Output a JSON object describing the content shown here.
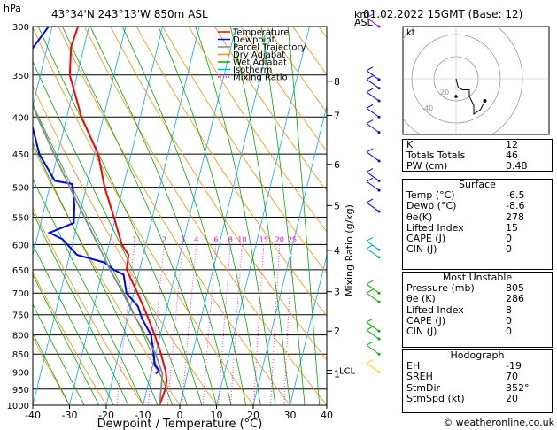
{
  "header": {
    "location": "43°34'N  243°13'W  850m  ASL",
    "datetime": "01.02.2022  15GMT  (Base: 12)"
  },
  "chart_data": {
    "type": "line",
    "title": "",
    "xlabel": "Dewpoint / Temperature (°C)",
    "ylabel": "hPa",
    "xlim": [
      -40,
      40
    ],
    "ylim": [
      1000,
      300
    ],
    "y_scale": "log",
    "xticks": [
      "-40",
      "-30",
      "-20",
      "-10",
      "0",
      "10",
      "20",
      "30",
      "40"
    ],
    "xtick_values": [
      -40,
      -30,
      -20,
      -10,
      0,
      10,
      20,
      30,
      40
    ],
    "yticks": [
      "300",
      "350",
      "400",
      "450",
      "500",
      "550",
      "600",
      "650",
      "700",
      "750",
      "800",
      "850",
      "900",
      "950",
      "1000"
    ],
    "ytick_values": [
      300,
      350,
      400,
      450,
      500,
      550,
      600,
      650,
      700,
      750,
      800,
      850,
      900,
      950,
      1000
    ],
    "km_axis": {
      "label_top": "km",
      "label_bottom": "ASL",
      "ticks": [
        {
          "label": "8",
          "p": 357
        },
        {
          "label": "7",
          "p": 398
        },
        {
          "label": "6",
          "p": 465
        },
        {
          "label": "5",
          "p": 530
        },
        {
          "label": "4",
          "p": 611
        },
        {
          "label": "3",
          "p": 697
        },
        {
          "label": "2",
          "p": 790
        },
        {
          "label": "1",
          "p": 905
        }
      ],
      "lcl_label": "LCL",
      "lcl_p": 895
    },
    "mixing_ratio_axis_label": "Mixing Ratio (g/kg)",
    "mixing_ratio_labels": [
      "1",
      "2",
      "3",
      "4",
      "6",
      "8",
      "10",
      "15",
      "20",
      "25"
    ],
    "mixing_ratio_values": [
      1,
      2,
      3,
      4,
      6,
      8,
      10,
      15,
      20,
      25
    ],
    "legend": {
      "position": "top-left",
      "entries": [
        {
          "name": "Temperature",
          "color": "#ff0000",
          "style": "solid"
        },
        {
          "name": "Dewpoint",
          "color": "#0000ff",
          "style": "solid"
        },
        {
          "name": "Parcel Trajectory",
          "color": "#888888",
          "style": "solid"
        },
        {
          "name": "Dry Adiabat",
          "color": "#ff8c00",
          "style": "solid"
        },
        {
          "name": "Wet Adiabat",
          "color": "#00aa00",
          "style": "solid"
        },
        {
          "name": "Isotherm",
          "color": "#00aaff",
          "style": "solid"
        },
        {
          "name": "Mixing Ratio",
          "color": "#ff00ff",
          "style": "dotted"
        }
      ]
    },
    "series": [
      {
        "name": "Temperature",
        "color": "#ff0000",
        "points": [
          [
            1000,
            -5.5
          ],
          [
            950,
            -5.0
          ],
          [
            925,
            -5.2
          ],
          [
            900,
            -6.0
          ],
          [
            870,
            -7.5
          ],
          [
            850,
            -8.5
          ],
          [
            800,
            -11.5
          ],
          [
            750,
            -15.0
          ],
          [
            700,
            -19.0
          ],
          [
            650,
            -23.5
          ],
          [
            620,
            -24.0
          ],
          [
            600,
            -26.5
          ],
          [
            550,
            -30.5
          ],
          [
            500,
            -35.0
          ],
          [
            450,
            -39.0
          ],
          [
            400,
            -46.0
          ],
          [
            350,
            -52.0
          ],
          [
            320,
            -53.5
          ],
          [
            300,
            -53.0
          ]
        ]
      },
      {
        "name": "Dewpoint",
        "color": "#0000ff",
        "points": [
          [
            905,
            -8.6
          ],
          [
            895,
            -8.0
          ],
          [
            880,
            -9.5
          ],
          [
            850,
            -10.5
          ],
          [
            800,
            -12.5
          ],
          [
            760,
            -16.0
          ],
          [
            730,
            -18.0
          ],
          [
            700,
            -22.0
          ],
          [
            660,
            -24.0
          ],
          [
            650,
            -27.0
          ],
          [
            635,
            -30.0
          ],
          [
            620,
            -38.0
          ],
          [
            590,
            -43.0
          ],
          [
            578,
            -47.0
          ],
          [
            560,
            -41.0
          ],
          [
            530,
            -42.0
          ],
          [
            495,
            -44.0
          ],
          [
            490,
            -49.0
          ],
          [
            450,
            -55.0
          ],
          [
            400,
            -60.0
          ],
          [
            350,
            -65.0
          ],
          [
            330,
            -65.0
          ],
          [
            300,
            -61.0
          ]
        ]
      },
      {
        "name": "Parcel Trajectory",
        "color": "#888888",
        "points": [
          [
            1000,
            -5.5
          ],
          [
            905,
            -6.8
          ],
          [
            850,
            -10.0
          ],
          [
            800,
            -14.0
          ],
          [
            750,
            -18.5
          ],
          [
            700,
            -23.0
          ],
          [
            650,
            -28.0
          ],
          [
            600,
            -33.0
          ],
          [
            550,
            -38.5
          ],
          [
            500,
            -44.5
          ],
          [
            450,
            -51.0
          ],
          [
            400,
            -58.0
          ],
          [
            350,
            -65.0
          ],
          [
            300,
            -72.0
          ]
        ]
      }
    ],
    "wind_barb_colors": [
      "#8b00ff",
      "#0000ff",
      "#00aaaa",
      "#00aa00",
      "#ffd700"
    ]
  },
  "indices": {
    "rows": [
      {
        "label": "K",
        "value": "12"
      },
      {
        "label": "Totals Totals",
        "value": "46"
      },
      {
        "label": "PW (cm)",
        "value": "0.48"
      }
    ]
  },
  "surface": {
    "title": "Surface",
    "rows": [
      {
        "label": "Temp (°C)",
        "value": "-6.5"
      },
      {
        "label": "Dewp (°C)",
        "value": "-8.6"
      },
      {
        "label": "θe(K)",
        "value": "278"
      },
      {
        "label": "Lifted Index",
        "value": "15"
      },
      {
        "label": "CAPE (J)",
        "value": "0"
      },
      {
        "label": "CIN (J)",
        "value": "0"
      }
    ]
  },
  "unstable": {
    "title": "Most Unstable",
    "rows": [
      {
        "label": "Pressure (mb)",
        "value": "805"
      },
      {
        "label": "θe (K)",
        "value": "286"
      },
      {
        "label": "Lifted Index",
        "value": "8"
      },
      {
        "label": "CAPE (J)",
        "value": "0"
      },
      {
        "label": "CIN (J)",
        "value": "0"
      }
    ]
  },
  "hodograph_table": {
    "title": "Hodograph",
    "rows": [
      {
        "label": "EH",
        "value": "-19"
      },
      {
        "label": "SREH",
        "value": "70"
      },
      {
        "label": "StmDir",
        "value": "352°"
      },
      {
        "label": "StmSpd (kt)",
        "value": "20"
      }
    ]
  },
  "hodograph": {
    "unit_label": "kt",
    "ring_labels": [
      "20",
      "40"
    ],
    "trace_kt": [
      [
        0,
        0
      ],
      [
        1,
        -4
      ],
      [
        3,
        -5
      ],
      [
        6,
        -5
      ],
      [
        6,
        -8
      ],
      [
        8,
        -12
      ],
      [
        8,
        -16
      ],
      [
        11,
        -14
      ],
      [
        13,
        -10
      ]
    ],
    "storm_motion_kt": [
      0,
      -8
    ]
  },
  "copyright": "© weatheronline.co.uk"
}
